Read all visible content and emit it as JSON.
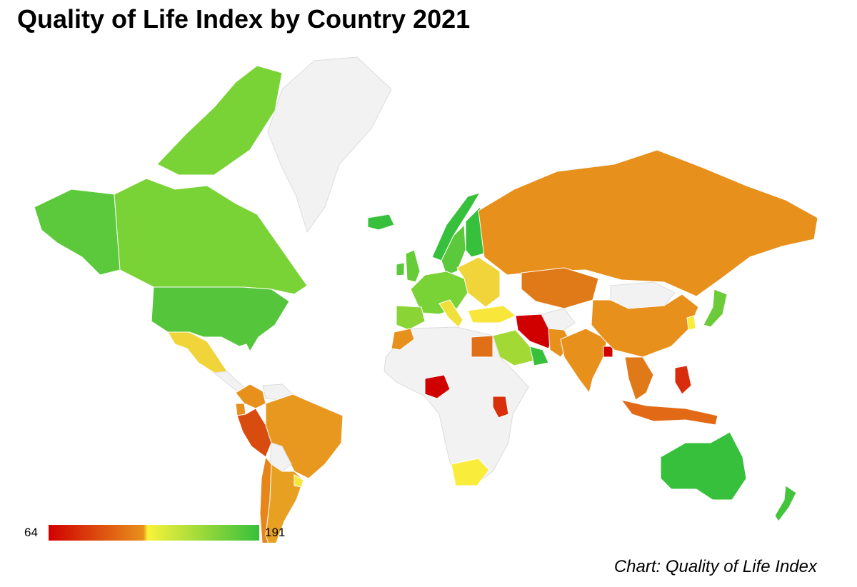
{
  "title": "Quality of Life Index by Country 2021",
  "source": "Chart: Quality of Life Index",
  "legend": {
    "min_label": "64",
    "max_label": "191",
    "min": 64,
    "max": 191,
    "colors": [
      "#d10000",
      "#e8901c",
      "#f9f23a",
      "#37c03b"
    ]
  },
  "no_data_color": "#f2f2f2",
  "regions": [
    {
      "id": "alaska",
      "color": "#5cc93c"
    },
    {
      "id": "canada",
      "color": "#7ad336"
    },
    {
      "id": "canada-arctic",
      "color": "#7ad336"
    },
    {
      "id": "greenland",
      "color": "#f2f2f2"
    },
    {
      "id": "usa",
      "color": "#55c63c"
    },
    {
      "id": "mexico",
      "color": "#f0d43a"
    },
    {
      "id": "central-america",
      "color": "#f2f2f2"
    },
    {
      "id": "colombia",
      "color": "#e8901c"
    },
    {
      "id": "venezuela",
      "color": "#f2f2f2"
    },
    {
      "id": "ecuador",
      "color": "#e8901c"
    },
    {
      "id": "peru",
      "color": "#d94c10"
    },
    {
      "id": "brazil",
      "color": "#e8981e"
    },
    {
      "id": "bolivia",
      "color": "#f2f2f2"
    },
    {
      "id": "chile",
      "color": "#e6861a"
    },
    {
      "id": "argentina",
      "color": "#e8a022"
    },
    {
      "id": "uruguay",
      "color": "#f9e63a"
    },
    {
      "id": "iceland",
      "color": "#37c03b"
    },
    {
      "id": "uk",
      "color": "#66cc38"
    },
    {
      "id": "ireland",
      "color": "#5cc93c"
    },
    {
      "id": "norway",
      "color": "#37c03b"
    },
    {
      "id": "sweden",
      "color": "#5cc93c"
    },
    {
      "id": "finland",
      "color": "#37c03b"
    },
    {
      "id": "western-europe",
      "color": "#7ad336"
    },
    {
      "id": "spain",
      "color": "#8ad535"
    },
    {
      "id": "eastern-europe",
      "color": "#f0d43a"
    },
    {
      "id": "italy",
      "color": "#f0e03a"
    },
    {
      "id": "russia",
      "color": "#e8901c"
    },
    {
      "id": "kazakhstan",
      "color": "#e07a18"
    },
    {
      "id": "turkey",
      "color": "#f9e63a"
    },
    {
      "id": "iran",
      "color": "#d10000"
    },
    {
      "id": "saudi-arabia",
      "color": "#a3d935"
    },
    {
      "id": "uae-oman",
      "color": "#37c03b"
    },
    {
      "id": "egypt",
      "color": "#e07018"
    },
    {
      "id": "morocco",
      "color": "#e8901c"
    },
    {
      "id": "africa",
      "color": "#f2f2f2"
    },
    {
      "id": "nigeria",
      "color": "#d10000"
    },
    {
      "id": "kenya",
      "color": "#d9300c"
    },
    {
      "id": "south-africa",
      "color": "#f9ec3a"
    },
    {
      "id": "india",
      "color": "#e8901c"
    },
    {
      "id": "pakistan",
      "color": "#e8901c"
    },
    {
      "id": "afghanistan",
      "color": "#f2f2f2"
    },
    {
      "id": "bangladesh",
      "color": "#d10000"
    },
    {
      "id": "mongolia",
      "color": "#f2f2f2"
    },
    {
      "id": "china",
      "color": "#e8901c"
    },
    {
      "id": "japan",
      "color": "#6ccb38"
    },
    {
      "id": "korea",
      "color": "#f9ec3a"
    },
    {
      "id": "southeast-asia",
      "color": "#e07a18"
    },
    {
      "id": "philippines",
      "color": "#d92c0c"
    },
    {
      "id": "indonesia",
      "color": "#e26a16"
    },
    {
      "id": "australia",
      "color": "#37c03b"
    },
    {
      "id": "new-zealand",
      "color": "#44c43a"
    }
  ]
}
